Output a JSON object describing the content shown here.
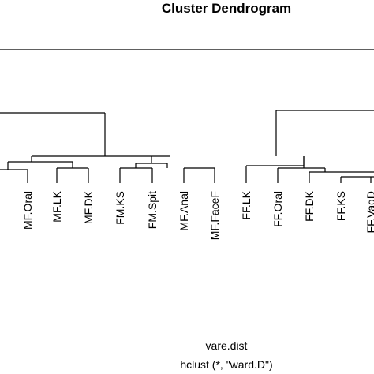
{
  "chart_data": {
    "type": "dendrogram",
    "title": "Cluster Dendrogram",
    "xlabel": "vare.dist",
    "sublabel": "hclust (*, \"ward.D\")",
    "leaves": [
      "MF.Oral",
      "MF.LK",
      "MF.DK",
      "FM.KS",
      "FM.Spit",
      "MF.Anal",
      "MF.FaceF",
      "FF.LK",
      "FF.Oral",
      "FF.DK",
      "FF.KS",
      "FF.VagD"
    ]
  }
}
